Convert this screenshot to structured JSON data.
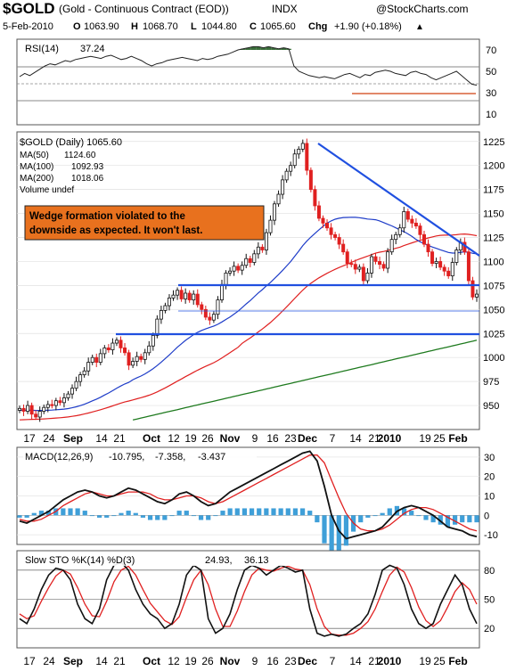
{
  "header": {
    "symbol": "$GOLD",
    "name": "(Gold - Continuous Contract (EOD))",
    "exchange": "INDX",
    "brand": "@StockCharts.com",
    "date": "5-Feb-2010",
    "open_label": "O",
    "open": "1063.90",
    "high_label": "H",
    "high": "1068.70",
    "low_label": "L",
    "low": "1044.80",
    "close_label": "C",
    "close": "1065.60",
    "chg_label": "Chg",
    "chg": "+1.90 (+0.18%)",
    "chg_arrow": "▲"
  },
  "rsi": {
    "label": "RSI(14)",
    "value": "37.24",
    "ticks": [
      "70",
      "50",
      "30",
      "10"
    ]
  },
  "price": {
    "legend_symbol": "$GOLD (Daily) 1065.60",
    "ma50_label": "MA(50)",
    "ma50_value": "1124.60",
    "ma100_label": "MA(100)",
    "ma100_value": "1092.93",
    "ma200_label": "MA(200)",
    "ma200_value": "1018.06",
    "volume_label": "Volume undef",
    "annotation_line1": "Wedge formation violated to the",
    "annotation_line2": "downside as expected.  It won't last.",
    "ticks": [
      "1225",
      "1200",
      "1175",
      "1150",
      "1125",
      "1100",
      "1075",
      "1050",
      "1025",
      "1000",
      "975",
      "950"
    ]
  },
  "x_labels": [
    "17",
    "24",
    "Sep",
    "14",
    "21",
    "Oct",
    "12",
    "19",
    "26",
    "Nov",
    "9",
    "16",
    "23",
    "Dec",
    "7",
    "14",
    "21",
    "2010",
    "19",
    "25",
    "Feb"
  ],
  "macd": {
    "label": "MACD(12,26,9)",
    "v1": "-10.795,",
    "v2": "-7.358,",
    "v3": "-3.437",
    "ticks": [
      "30",
      "20",
      "10",
      "0",
      "-10"
    ]
  },
  "sto": {
    "label": "Slow STO %K(14) %D(3)",
    "k": "24.93,",
    "d": "36.13",
    "ticks": [
      "80",
      "50",
      "20"
    ]
  },
  "colors": {
    "ma50": "#1e3cc8",
    "ma100": "#e02020",
    "ma200": "#1e7a1e",
    "annotation_bg": "#e8711e",
    "trendline": "#2050e0",
    "macd_hist": "#3f9fd8",
    "rsi_fill": "#3a6e3a",
    "up_candle": "#ffffff",
    "down_candle": "#e02020"
  },
  "chart_data": [
    {
      "type": "line",
      "title": "$GOLD (Daily) 1065.60",
      "ylim": [
        925,
        1235
      ],
      "closes": [
        947,
        944,
        950,
        941,
        938,
        944,
        948,
        951,
        950,
        955,
        953,
        958,
        962,
        968,
        975,
        982,
        986,
        995,
        1000,
        995,
        1004,
        1010,
        1008,
        1015,
        1018,
        1010,
        1005,
        992,
        996,
        1001,
        998,
        1005,
        1012,
        1023,
        1040,
        1049,
        1054,
        1062,
        1065,
        1070,
        1061,
        1067,
        1060,
        1066,
        1055,
        1050,
        1042,
        1039,
        1045,
        1060,
        1076,
        1088,
        1090,
        1095,
        1091,
        1096,
        1103,
        1099,
        1108,
        1115,
        1112,
        1130,
        1143,
        1160,
        1170,
        1185,
        1194,
        1200,
        1212,
        1217,
        1223,
        1195,
        1175,
        1158,
        1145,
        1140,
        1135,
        1128,
        1125,
        1118,
        1110,
        1098,
        1097,
        1092,
        1094,
        1080,
        1088,
        1105,
        1100,
        1097,
        1093,
        1110,
        1123,
        1128,
        1135,
        1152,
        1144,
        1140,
        1137,
        1128,
        1118,
        1110,
        1098,
        1100,
        1094,
        1090,
        1085,
        1099,
        1112,
        1120,
        1110,
        1080,
        1063,
        1066
      ],
      "ma50_label": "MA(50) 1124.60",
      "ma100_label": "MA(100) 1092.93",
      "ma200_label": "MA(200) 1018.06",
      "horizontal_levels": [
        1077,
        1048,
        1025
      ]
    },
    {
      "type": "line",
      "title": "RSI(14) 37.24",
      "ylim": [
        0,
        80
      ],
      "values": [
        45,
        48,
        46,
        49,
        52,
        55,
        57,
        56,
        58,
        60,
        59,
        61,
        62,
        63,
        64,
        63,
        62,
        64,
        65,
        63,
        61,
        62,
        64,
        62,
        60,
        57,
        55,
        57,
        58,
        60,
        61,
        62,
        63,
        62,
        61,
        60,
        62,
        61,
        62,
        64,
        65,
        66,
        68,
        70,
        71,
        72,
        73,
        73,
        72,
        73,
        72,
        71,
        72,
        71,
        55,
        50,
        48,
        46,
        45,
        44,
        45,
        44,
        43,
        45,
        47,
        48,
        46,
        44,
        47,
        46,
        49,
        50,
        51,
        50,
        48,
        47,
        46,
        49,
        50,
        48,
        47,
        44,
        42,
        44,
        46,
        48,
        50,
        46,
        42,
        38,
        37
      ],
      "reference_lines": [
        70,
        50,
        30
      ]
    },
    {
      "type": "bar",
      "title": "MACD(12,26,9) -10.795, -7.358, -3.437",
      "ylim": [
        -15,
        35
      ],
      "macd": [
        -3,
        -4,
        -2,
        0,
        2,
        5,
        8,
        10,
        12,
        13,
        12,
        10,
        9,
        10,
        12,
        14,
        13,
        11,
        9,
        7,
        6,
        8,
        11,
        12,
        10,
        7,
        5,
        6,
        9,
        12,
        14,
        16,
        18,
        20,
        22,
        24,
        26,
        28,
        30,
        32,
        33,
        28,
        15,
        0,
        -8,
        -12,
        -11,
        -10,
        -9,
        -8,
        -6,
        -2,
        2,
        4,
        5,
        4,
        2,
        0,
        -3,
        -6,
        -7,
        -8,
        -10,
        -11
      ],
      "signal": [
        -2,
        -3,
        -3,
        -2,
        0,
        2,
        5,
        7,
        9,
        11,
        12,
        11,
        10,
        10,
        11,
        12,
        12,
        12,
        11,
        9,
        8,
        8,
        9,
        10,
        10,
        9,
        7,
        6,
        7,
        9,
        11,
        13,
        15,
        17,
        19,
        21,
        23,
        25,
        27,
        29,
        31,
        31,
        27,
        18,
        9,
        1,
        -4,
        -7,
        -8,
        -8,
        -7,
        -5,
        -2,
        1,
        3,
        4,
        4,
        3,
        1,
        -1,
        -3,
        -5,
        -7,
        -8
      ]
    },
    {
      "type": "line",
      "title": "Slow STO %K(14) %D(3) 24.93, 36.13",
      "ylim": [
        0,
        100
      ],
      "k": [
        30,
        25,
        40,
        60,
        75,
        82,
        80,
        70,
        45,
        30,
        25,
        40,
        70,
        85,
        88,
        80,
        60,
        45,
        35,
        30,
        20,
        25,
        45,
        75,
        85,
        80,
        30,
        15,
        20,
        35,
        60,
        80,
        85,
        82,
        75,
        80,
        85,
        82,
        78,
        80,
        40,
        15,
        12,
        14,
        12,
        14,
        20,
        25,
        35,
        55,
        80,
        85,
        82,
        65,
        40,
        25,
        20,
        25,
        45,
        60,
        75,
        65,
        40,
        25
      ],
      "d": [
        35,
        30,
        33,
        48,
        62,
        74,
        80,
        76,
        62,
        45,
        33,
        32,
        48,
        68,
        80,
        84,
        75,
        60,
        46,
        37,
        28,
        24,
        32,
        52,
        70,
        80,
        65,
        40,
        22,
        22,
        38,
        58,
        75,
        82,
        80,
        79,
        82,
        84,
        81,
        80,
        65,
        40,
        22,
        14,
        13,
        13,
        15,
        20,
        27,
        40,
        58,
        75,
        83,
        78,
        62,
        42,
        28,
        22,
        28,
        42,
        58,
        67,
        60,
        45
      ]
    }
  ]
}
